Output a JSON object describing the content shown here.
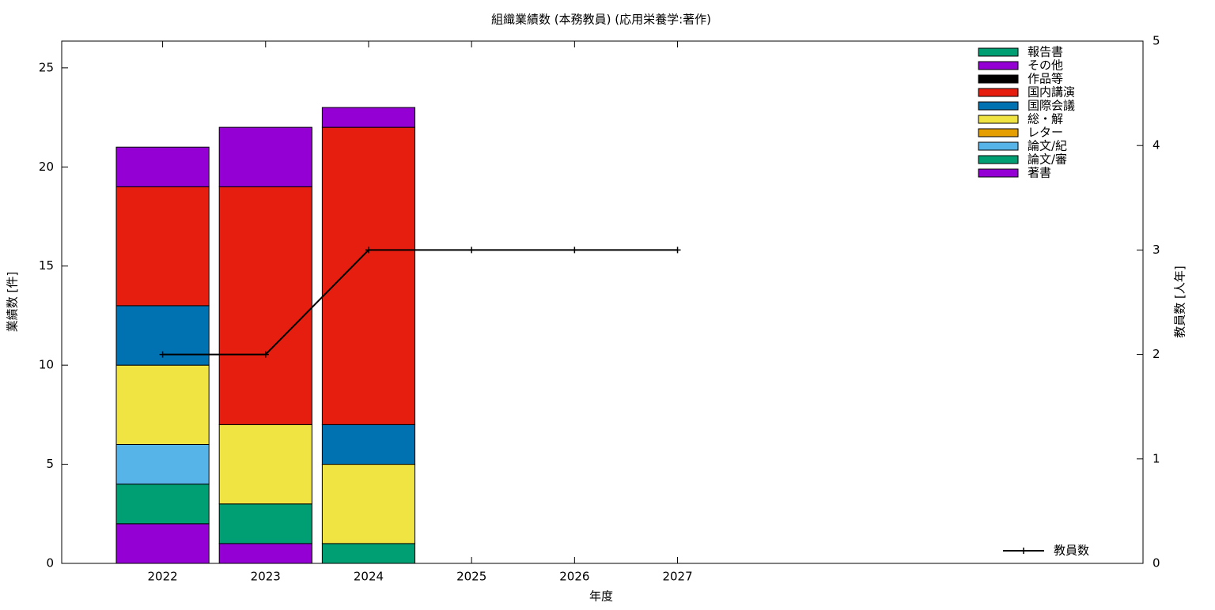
{
  "chart_data": {
    "type": "bar",
    "title": "組織業績数 (本務教員) (応用栄養学:著作)",
    "x_label": "年度",
    "y_label": "業績数 [件]",
    "y2_label": "教員数 [人年]",
    "x": [
      2022,
      2023,
      2024,
      2025,
      2026,
      2027
    ],
    "xlim": [
      2021.02,
      2031.52
    ],
    "xticks": [
      2022,
      2023,
      2024,
      2025,
      2026,
      2027
    ],
    "ylim": [
      0,
      26.35
    ],
    "yticks": [
      0,
      5,
      10,
      15,
      20,
      25
    ],
    "y2lim": [
      0,
      5
    ],
    "y2ticks": [
      0,
      1,
      2,
      3,
      4,
      5
    ],
    "stacked": true,
    "legend": "top-right",
    "series": [
      {
        "name": "著書",
        "color": "#9400d3",
        "values": [
          2,
          1,
          0,
          null,
          null,
          null
        ]
      },
      {
        "name": "論文/審",
        "color": "#009e73",
        "values": [
          2,
          2,
          1,
          null,
          null,
          null
        ]
      },
      {
        "name": "論文/紀",
        "color": "#56b4e9",
        "values": [
          2,
          0,
          0,
          null,
          null,
          null
        ]
      },
      {
        "name": "レター",
        "color": "#e69f00",
        "values": [
          0,
          0,
          0,
          null,
          null,
          null
        ]
      },
      {
        "name": "総・解",
        "color": "#f0e442",
        "values": [
          4,
          4,
          4,
          null,
          null,
          null
        ]
      },
      {
        "name": "国際会議",
        "color": "#0072b2",
        "values": [
          3,
          0,
          2,
          null,
          null,
          null
        ]
      },
      {
        "name": "国内講演",
        "color": "#e51e10",
        "values": [
          6,
          12,
          15,
          null,
          null,
          null
        ]
      },
      {
        "name": "作品等",
        "color": "#000000",
        "values": [
          0,
          0,
          0,
          null,
          null,
          null
        ]
      },
      {
        "name": "その他",
        "color": "#9400d3",
        "values": [
          2,
          3,
          1,
          null,
          null,
          null
        ]
      },
      {
        "name": "報告書",
        "color": "#009e73",
        "values": [
          0,
          0,
          0,
          null,
          null,
          null
        ]
      },
      {
        "name": "教員数",
        "color": "#000000",
        "type": "line",
        "axis": "y2",
        "values": [
          2,
          2,
          3,
          3,
          3,
          3
        ]
      }
    ]
  }
}
